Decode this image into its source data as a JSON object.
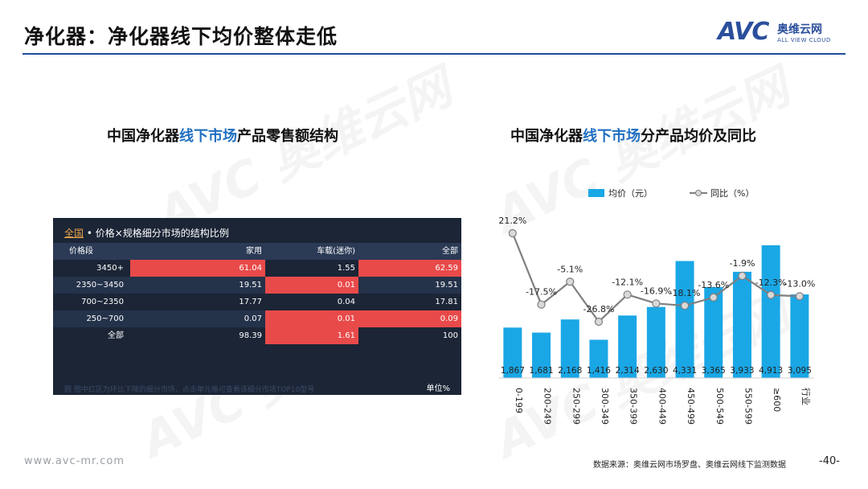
{
  "header": {
    "title": "净化器：净化器线下均价整体走低"
  },
  "logo": {
    "mark": "AVC",
    "cn": "奥维云网",
    "en": "ALL VIEW CLOUD"
  },
  "watermark": {
    "text": "AVC 奥维云网"
  },
  "left": {
    "title_pre": "中国净化器",
    "title_hl": "线下市场",
    "title_post": "产品零售额结构",
    "panel": {
      "link": "全国",
      "title": " • 价格×规格细分市场的结构比例",
      "columns": [
        "价格段",
        "家用",
        "车载(迷你)",
        "全部"
      ],
      "rows": [
        {
          "label": "3450+",
          "home": "61.04",
          "car": "1.55",
          "all": "62.59",
          "home_hl": true,
          "car_hl": false,
          "all_hl": true
        },
        {
          "label": "2350~3450",
          "home": "19.51",
          "car": "0.01",
          "all": "19.51",
          "home_hl": false,
          "car_hl": true,
          "all_hl": false
        },
        {
          "label": "700~2350",
          "home": "17.77",
          "car": "0.04",
          "all": "17.81",
          "home_hl": false,
          "car_hl": false,
          "all_hl": false
        },
        {
          "label": "250~700",
          "home": "0.07",
          "car": "0.01",
          "all": "0.09",
          "home_hl": false,
          "car_hl": true,
          "all_hl": true
        },
        {
          "label": "全部",
          "home": "98.39",
          "car": "1.61",
          "all": "100",
          "home_hl": false,
          "car_hl": true,
          "all_hl": false
        }
      ],
      "hint": "圆 图中红区为环比下降的细分市场，点击单元格可查看该细分市场TOP10型号",
      "unit": "单位%",
      "colors": {
        "highlight": "#e84a4a",
        "row_dark": "#1b2536",
        "row_light": "#24324a",
        "header": "#2b3a55"
      }
    }
  },
  "right": {
    "title_pre": "中国净化器",
    "title_hl": "线下市场",
    "title_post": "分产品均价及同比"
  },
  "chart_data": {
    "type": "bar",
    "categories": [
      "0-199",
      "200-249",
      "250-299",
      "300-349",
      "350-399",
      "400-449",
      "450-499",
      "500-549",
      "550-599",
      "≥600",
      "行业"
    ],
    "series": [
      {
        "name": "均价（元）",
        "type": "bar",
        "values": [
          1867,
          1681,
          2168,
          1416,
          2314,
          2630,
          4331,
          3365,
          3933,
          4913,
          3095
        ],
        "labels": [
          "1,867",
          "1,681",
          "2,168",
          "1,416",
          "2,314",
          "2,630",
          "4,331",
          "3,365",
          "3,933",
          "4,913",
          "3,095"
        ],
        "color": "#1aa7e6"
      },
      {
        "name": "同比（%）",
        "type": "line",
        "values": [
          21.2,
          -17.5,
          -5.1,
          -26.8,
          -12.1,
          -16.9,
          -18.1,
          -13.6,
          -1.9,
          -12.3,
          -13.0
        ],
        "labels": [
          "21.2%",
          "-17.5%",
          "-5.1%",
          "-26.8%",
          "-12.1%",
          "-16.9%",
          "-18.1%",
          "-13.6%",
          "-1.9%",
          "-12.3%",
          "-13.0%"
        ],
        "color": "#7f7f7f"
      }
    ],
    "legend": "top"
  },
  "footer": {
    "url": "www.avc-mr.com",
    "source": "数据来源：奥维云网市场罗盘、奥维云网线下监测数据",
    "page": "-40-"
  }
}
